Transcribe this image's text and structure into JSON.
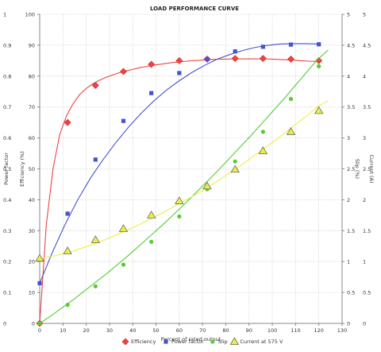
{
  "chart_data": {
    "type": "line",
    "title": "LOAD PERFORMANCE CURVE",
    "xlabel": "Percent of rated output",
    "xlim": [
      0,
      130
    ],
    "x_ticks": [
      "0",
      "10",
      "20",
      "30",
      "40",
      "50",
      "60",
      "70",
      "80",
      "90",
      "100",
      "110",
      "120",
      "130"
    ],
    "y_axes": [
      {
        "label": "Power factor",
        "ticks": [
          "0",
          "0.1",
          "0.2",
          "0.3",
          "0.4",
          "0.5",
          "0.6",
          "0.7",
          "0.8",
          "0.9",
          "1"
        ],
        "ylim": [
          0,
          1
        ]
      },
      {
        "label": "Efficiency (%)",
        "ticks": [
          "0",
          "10",
          "20",
          "30",
          "40",
          "50",
          "60",
          "70",
          "80",
          "90",
          "100"
        ],
        "ylim": [
          0,
          100
        ]
      },
      {
        "label": "Slip (%)",
        "ticks": [
          "0",
          "0.5",
          "1",
          "1.5",
          "2",
          "2.5",
          "3",
          "3.5",
          "4",
          "4.5",
          "5"
        ],
        "ylim": [
          0,
          5
        ]
      },
      {
        "label": "Current (A)",
        "ticks": [
          "0",
          "0.5",
          "1",
          "1.5",
          "2",
          "2.5",
          "3",
          "3.5",
          "4",
          "4.5",
          "5"
        ],
        "ylim": [
          0,
          5
        ]
      }
    ],
    "grid": true,
    "legend_position": "bottom",
    "series": [
      {
        "name": "Efficiency",
        "axis": "Efficiency (%)",
        "color": "#ee4444",
        "marker": "diamond",
        "x": [
          0,
          12,
          24,
          36,
          48,
          60,
          72,
          84,
          96,
          108,
          120
        ],
        "y": [
          0,
          65,
          77,
          81.5,
          83.8,
          85,
          85.5,
          85.7,
          85.7,
          85.5,
          85
        ],
        "curve_y": [
          0,
          32,
          50,
          61,
          67,
          71,
          74,
          76,
          77.5,
          78.7,
          79.6,
          80.4,
          81.1,
          81.7,
          82.2,
          82.7,
          83.1,
          83.5,
          83.8,
          84.1,
          84.4,
          84.6,
          84.8,
          85,
          85.1,
          85.3,
          85.4,
          85.5,
          85.5,
          85.6,
          85.6,
          85.6,
          85.6,
          85.6,
          85.6,
          85.5,
          85.4,
          85.3,
          85.2,
          85,
          84.9,
          84.8,
          84.7
        ]
      },
      {
        "name": "Power factor",
        "axis": "Power factor",
        "color": "#4455cc",
        "marker": "square",
        "x": [
          0,
          12,
          24,
          36,
          48,
          60,
          72,
          84,
          96,
          108,
          120
        ],
        "y": [
          0.13,
          0.355,
          0.53,
          0.655,
          0.745,
          0.81,
          0.855,
          0.88,
          0.895,
          0.902,
          0.903
        ],
        "curve_y": [
          0.13,
          0.23,
          0.32,
          0.4,
          0.47,
          0.53,
          0.585,
          0.635,
          0.68,
          0.72,
          0.755,
          0.785,
          0.812,
          0.835,
          0.855,
          0.87,
          0.883,
          0.893,
          0.9,
          0.904,
          0.905,
          0.905,
          0.904
        ]
      },
      {
        "name": "Slip",
        "axis": "Slip (%)",
        "color": "#55cc33",
        "marker": "circle",
        "x": [
          0,
          12,
          24,
          36,
          48,
          60,
          72,
          84,
          96,
          108,
          120
        ],
        "y": [
          0,
          0.3,
          0.6,
          0.95,
          1.32,
          1.73,
          2.17,
          2.62,
          3.1,
          3.63,
          4.16
        ],
        "curve_y": [
          0,
          0.12,
          0.25,
          0.38,
          0.52,
          0.66,
          0.8,
          0.95,
          1.1,
          1.26,
          1.42,
          1.58,
          1.75,
          1.92,
          2.1,
          2.28,
          2.46,
          2.65,
          2.84,
          3.03,
          3.23,
          3.43,
          3.63,
          3.84,
          4.05,
          4.26,
          4.42
        ]
      },
      {
        "name": "Current at 575 V",
        "axis": "Current (A)",
        "color": "#eeee44",
        "marker": "triangle",
        "x": [
          0,
          12,
          24,
          36,
          48,
          60,
          72,
          84,
          96,
          108,
          120
        ],
        "y": [
          1.05,
          1.17,
          1.35,
          1.53,
          1.75,
          1.98,
          2.22,
          2.49,
          2.79,
          3.1,
          3.44
        ],
        "curve_y": [
          1.05,
          1.08,
          1.12,
          1.17,
          1.23,
          1.29,
          1.36,
          1.44,
          1.52,
          1.6,
          1.69,
          1.78,
          1.88,
          1.98,
          2.08,
          2.19,
          2.3,
          2.42,
          2.54,
          2.67,
          2.8,
          2.93,
          3.07,
          3.21,
          3.35,
          3.5,
          3.6
        ]
      }
    ]
  }
}
